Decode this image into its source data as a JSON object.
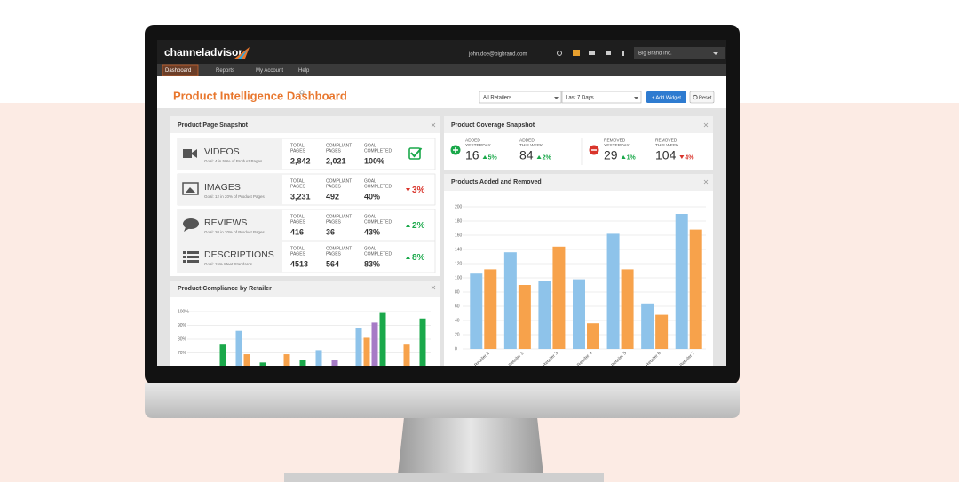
{
  "nav": {
    "logo": "channeladvisor",
    "user": "john.doe@bigbrand.com",
    "account": "Big Brand Inc.",
    "tabs": [
      "Dashboard",
      "Reports",
      "My Account",
      "Help"
    ]
  },
  "header": {
    "title": "Product Intelligence Dashboard",
    "retailer_filter": "All Retailers",
    "date_filter": "Last 7 Days",
    "add_button": "+ Add Widget",
    "reset_button": "Reset"
  },
  "snapshot": {
    "title": "Product Page Snapshot",
    "columns": [
      [
        "TOTAL",
        "PAGES"
      ],
      [
        "COMPLIANT",
        "PAGES"
      ],
      [
        "GOAL",
        "COMPLETED"
      ]
    ],
    "rows": [
      {
        "name": "VIDEOS",
        "goal": "Goal: 4 in 50% of Product Pages",
        "total": "2,842",
        "compliant": "2,021",
        "completed": "100%"
      },
      {
        "name": "IMAGES",
        "goal": "Goal: 12 in 20% of Product Pages",
        "total": "3,231",
        "compliant": "492",
        "completed": "40%",
        "change": "3%",
        "trend": "down"
      },
      {
        "name": "REVIEWS",
        "goal": "Goal: 20 in 20% of Product Pages",
        "total": "416",
        "compliant": "36",
        "completed": "43%",
        "change": "2%",
        "trend": "up"
      },
      {
        "name": "DESCRIPTIONS",
        "goal": "Goal: 15% Meet Standards",
        "total": "4513",
        "compliant": "564",
        "completed": "83%",
        "change": "8%",
        "trend": "up"
      }
    ]
  },
  "coverage": {
    "title": "Product Coverage Snapshot",
    "items": [
      {
        "label": [
          "ADDED",
          "YESTERDAY"
        ],
        "value": 16,
        "change": "5%",
        "trend": "up"
      },
      {
        "label": [
          "ADDED",
          "THIS WEEK"
        ],
        "value": 84,
        "change": "2%",
        "trend": "up"
      },
      {
        "label": [
          "REMOVED",
          "YESTERDAY"
        ],
        "value": 29,
        "change": "1%",
        "trend": "up"
      },
      {
        "label": [
          "REMOVED",
          "THIS WEEK"
        ],
        "value": 104,
        "change": "4%",
        "trend": "down"
      }
    ]
  },
  "chart_data": [
    {
      "type": "bar",
      "title": "Product Compliance by Retailer",
      "categories": [
        null,
        null,
        null,
        null,
        null,
        null
      ],
      "series": [
        {
          "color": "#8ec3ea",
          "values": [
            null,
            86,
            null,
            72,
            88,
            null
          ]
        },
        {
          "color": "#f7a24b",
          "values": [
            null,
            69,
            69,
            null,
            81,
            76
          ]
        },
        {
          "color": "#a67bc6",
          "values": [
            null,
            null,
            null,
            65,
            92,
            null
          ]
        },
        {
          "color": "#1aa84a",
          "values": [
            76,
            63,
            65,
            null,
            99,
            95
          ]
        }
      ],
      "ylim": [
        0,
        100
      ],
      "yticks": [
        {
          "value": 70,
          "label": "70%"
        },
        {
          "value": 80,
          "label": "80%"
        },
        {
          "value": 90,
          "label": "90%"
        },
        {
          "value": 100,
          "label": "100%"
        }
      ],
      "grid": true
    },
    {
      "type": "bar",
      "title": "Products Added and Removed",
      "categories": [
        "Retailer 1",
        "Retailer 2",
        "Retailer 3",
        "Retailer 4",
        "Retailer 5",
        "Retailer 6",
        "Retailer 7"
      ],
      "series": [
        {
          "color": "#8ec3ea",
          "values": [
            106,
            136,
            96,
            98,
            162,
            64,
            190
          ]
        },
        {
          "color": "#f7a24b",
          "values": [
            112,
            90,
            144,
            36,
            112,
            48,
            168
          ]
        }
      ],
      "ylim": [
        0,
        200
      ],
      "yticks": [
        0,
        20,
        40,
        60,
        80,
        100,
        120,
        140,
        160,
        180,
        200
      ],
      "grid": true
    }
  ]
}
